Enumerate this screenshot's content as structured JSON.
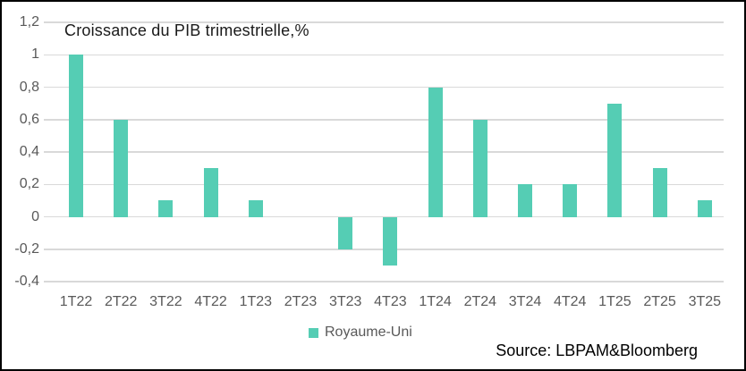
{
  "chart_data": {
    "type": "bar",
    "title": "Croissance du PIB trimestrielle,%",
    "categories": [
      "1T22",
      "2T22",
      "3T22",
      "4T22",
      "1T23",
      "2T23",
      "3T23",
      "4T23",
      "1T24",
      "2T24",
      "3T24",
      "4T24",
      "1T25",
      "2T25",
      "3T25"
    ],
    "series": [
      {
        "name": "Royaume-Uni",
        "values": [
          1.0,
          0.6,
          0.1,
          0.3,
          0.1,
          0.0,
          -0.2,
          -0.3,
          0.8,
          0.6,
          0.2,
          0.2,
          0.7,
          0.3,
          0.1
        ]
      }
    ],
    "xlabel": "",
    "ylabel": "",
    "ylim": [
      -0.4,
      1.2
    ],
    "ytick_step": 0.2,
    "yticklabels": [
      "1,2",
      "1",
      "0,8",
      "0,6",
      "0,4",
      "0,2",
      "0",
      "-0,2",
      "-0,4"
    ],
    "grid": true,
    "legend_position": "bottom-center"
  },
  "legend": {
    "label": "Royaume-Uni"
  },
  "source_note": "Source: LBPAM&Bloomberg",
  "colors": {
    "bar": "#55CDB4",
    "gridline": "#D9D9D9",
    "axis_text": "#595959",
    "title_text": "#1a1a1a",
    "source_text": "#000000",
    "frame_border": "#000000"
  }
}
